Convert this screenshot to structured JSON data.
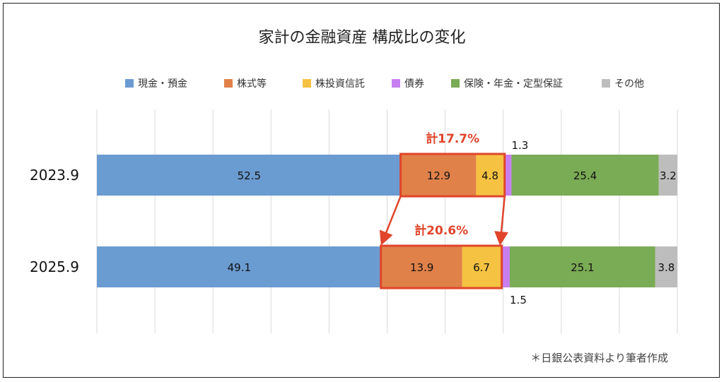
{
  "chart_data": {
    "type": "bar",
    "orientation": "horizontal",
    "stacked": true,
    "title": "家計の金融資産 構成比の変化",
    "categories": [
      "2023.9",
      "2025.9"
    ],
    "series": [
      {
        "name": "現金・預金",
        "color": "#6a9bd1",
        "values": [
          52.5,
          49.1
        ]
      },
      {
        "name": "株式等",
        "color": "#e0814a",
        "values": [
          12.9,
          13.9
        ]
      },
      {
        "name": "株投資信託",
        "color": "#f5c242",
        "values": [
          4.8,
          6.7
        ]
      },
      {
        "name": "債券",
        "color": "#c77ff0",
        "values": [
          1.3,
          1.5
        ]
      },
      {
        "name": "保険・年金・定型保証",
        "color": "#7aab55",
        "values": [
          25.4,
          25.1
        ]
      },
      {
        "name": "その他",
        "color": "#bdbdbd",
        "values": [
          3.2,
          3.8
        ]
      }
    ],
    "value_labels": [
      [
        "52.5",
        "12.9",
        "4.8",
        "1.3",
        "25.4",
        "3.2"
      ],
      [
        "49.1",
        "13.9",
        "6.7",
        "1.5",
        "25.1",
        "3.8"
      ]
    ],
    "highlights": [
      "計17.7%",
      "計20.6%"
    ],
    "highlight_color": "#e0452b",
    "legend_position": "top",
    "grid": true,
    "xlim": [
      0,
      100
    ]
  },
  "note": "＊日銀公表資料より筆者作成"
}
